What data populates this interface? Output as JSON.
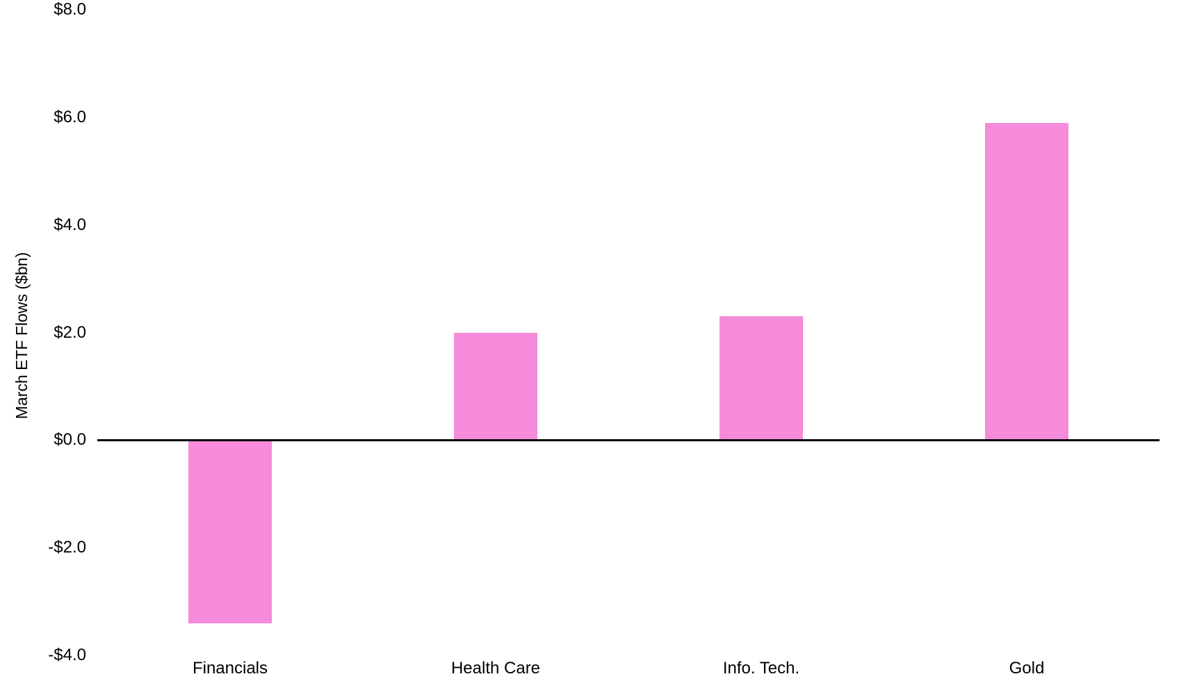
{
  "chart_data": {
    "type": "bar",
    "title": "",
    "xlabel": "",
    "ylabel": "March ETF Flows ($bn)",
    "categories": [
      "Financials",
      "Health Care",
      "Info. Tech.",
      "Gold"
    ],
    "values": [
      -3.4,
      2.0,
      2.3,
      5.9
    ],
    "ylim": [
      -4.0,
      8.0
    ],
    "yticks": [
      8.0,
      6.0,
      4.0,
      2.0,
      0.0,
      -2.0,
      -4.0
    ],
    "ytick_labels": [
      "$8.0",
      "$6.0",
      "$4.0",
      "$2.0",
      "$0.0",
      "-$2.0",
      "-$4.0"
    ],
    "bar_color": "#F58BDA",
    "axis_color": "#000000",
    "background_color": "#FFFFFF",
    "grid": false,
    "legend": false
  }
}
